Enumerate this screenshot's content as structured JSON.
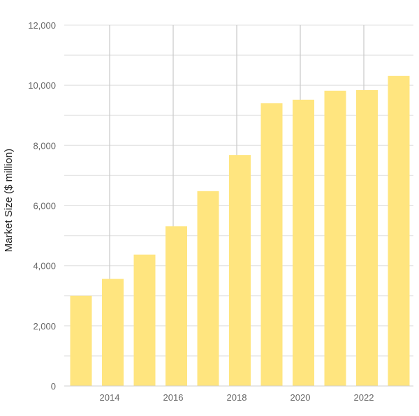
{
  "chart_data": {
    "type": "bar",
    "title": "",
    "xlabel": "",
    "ylabel": "Market Size ($ million)",
    "categories": [
      2013,
      2014,
      2015,
      2016,
      2017,
      2018,
      2019,
      2020,
      2021,
      2022,
      2023
    ],
    "values": [
      3000,
      3560,
      4370,
      5310,
      6480,
      7680,
      9400,
      9520,
      9820,
      9840,
      10310
    ],
    "ylim": [
      0,
      12000
    ],
    "yticks": [
      0,
      2000,
      4000,
      6000,
      8000,
      10000,
      12000
    ],
    "ytick_labels": [
      "0",
      "2,000",
      "4,000",
      "6,000",
      "8,000",
      "10,000",
      "12,000"
    ],
    "minor_grid_step": 1000,
    "xticks": [
      2014,
      2016,
      2018,
      2020,
      2022
    ],
    "xtick_labels": [
      "2014",
      "2016",
      "2018",
      "2020",
      "2022"
    ],
    "grid": true,
    "bar_color": "#FFE57F",
    "grid_color": "#e6e6e6",
    "vgrid_color": "#cccccc"
  }
}
